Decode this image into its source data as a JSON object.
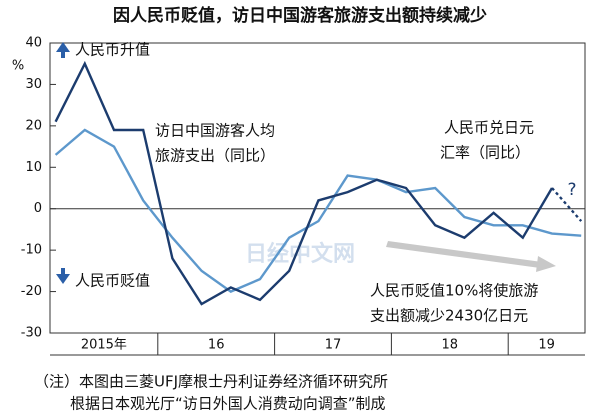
{
  "chart_data": {
    "type": "line",
    "title": "因人民币贬值，访日中国游客旅游支出额持续减少",
    "y_unit": "%",
    "categories": [
      "2015年",
      null,
      null,
      null,
      "16",
      null,
      null,
      null,
      "17",
      null,
      null,
      null,
      "18",
      null,
      null,
      null,
      "19",
      null,
      null
    ],
    "ylim": [
      -30,
      40
    ],
    "yticks": [
      40,
      30,
      20,
      10,
      0,
      -10,
      -20,
      -30
    ],
    "grid": false,
    "series": [
      {
        "name": [
          "访日中国游客人均",
          "旅游支出（同比）"
        ],
        "color": "#1c3c6e",
        "values": [
          21,
          35,
          19,
          19,
          -12,
          -23,
          -19,
          -22,
          -15,
          2,
          4,
          7,
          5,
          -4,
          -7,
          -1,
          -7,
          5,
          -3
        ],
        "dashed_from_index": 17
      },
      {
        "name": [
          "人民币兑日元",
          "汇率（同比）"
        ],
        "color": "#5d98cc",
        "values": [
          13,
          19,
          15,
          2,
          -7,
          -15,
          -20,
          -17,
          -7,
          -3,
          8,
          7,
          4,
          5,
          -2,
          -4,
          -4,
          -6,
          -6.5
        ]
      }
    ],
    "annotations": {
      "appreciation": "人民币升值",
      "depreciation": "人民币贬值",
      "question": "?",
      "note": [
        "人民币贬值10%将使旅游",
        "支出额减少2430亿日元"
      ],
      "watermark": "日经中文网"
    },
    "footnote": [
      "（注）本图由三菱UFJ摩根士丹利证券经济循环研究所",
      "根据日本观光厅“访日外国人消费动向调查”制成"
    ]
  }
}
